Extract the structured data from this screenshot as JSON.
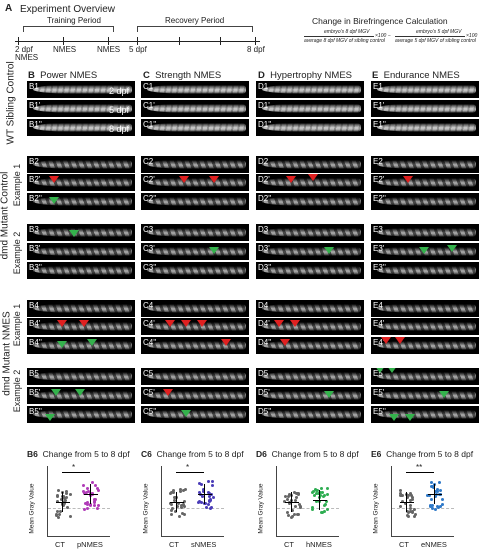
{
  "overview": {
    "panel_letter": "A",
    "title": "Experiment Overview",
    "training_label": "Training Period",
    "recovery_label": "Recovery Period",
    "tick_2dpf": "2 dpf",
    "tick_nmes_a": "NMES",
    "tick_nmes_b": "NMES",
    "tick_nmes_c": "NMES",
    "tick_5dpf": "5 dpf",
    "tick_8dpf": "8 dpf",
    "formula_title": "Change in Birefringence Calculation",
    "formula_num1": "embryo's 8 dpf MGV",
    "formula_den1": "average 8 dpf MGV of sibling control",
    "formula_num2": "embryo's 5 dpf MGV",
    "formula_den2": "average 5 dpf MGV of sibling control",
    "formula_x100": "×100"
  },
  "columns": [
    {
      "letter": "B",
      "title": "Power NMES"
    },
    {
      "letter": "C",
      "title": "Strength NMES"
    },
    {
      "letter": "D",
      "title": "Hypertrophy NMES"
    },
    {
      "letter": "E",
      "title": "Endurance NMES"
    }
  ],
  "row_labels": {
    "sibling": "WT Sibling Control",
    "mutant_control": "dmd Mutant Control",
    "mutant_nmes": "dmd Mutant NMES",
    "example1": "Example 1",
    "example2": "Example 2",
    "dmd": "dmd"
  },
  "day_labels": [
    "2 dpf",
    "5 dpf",
    "8 dpf"
  ],
  "image_labels": {
    "B": [
      "B1",
      "B1'",
      "B1''",
      "B2",
      "B2'",
      "B2''",
      "B3",
      "B3'",
      "B3''",
      "B4",
      "B4'",
      "B4''",
      "B5",
      "B5'",
      "B5''"
    ],
    "C": [
      "C1",
      "C1'",
      "C1''",
      "C2",
      "C2'",
      "C2''",
      "C3",
      "C3'",
      "C3''",
      "C4",
      "C4'",
      "C4''",
      "C5",
      "C5'",
      "C5''"
    ],
    "D": [
      "D1",
      "D1'",
      "D1''",
      "D2",
      "D2'",
      "D2''",
      "D3",
      "D3'",
      "D3''",
      "D4",
      "D4'",
      "D4''",
      "D5",
      "D5'",
      "D5''"
    ],
    "E": [
      "E1",
      "E1'",
      "E1''",
      "E2",
      "E2'",
      "E2''",
      "E3",
      "E3'",
      "E3''",
      "E4",
      "E4'",
      "E4''",
      "E5",
      "E5'",
      "E5''"
    ]
  },
  "stats_panels": [
    {
      "letter": "B6",
      "title": "Change from 5 to 8 dpf",
      "ylabel": "Mean Gray Value",
      "x_labels": [
        "CT",
        "pNMES"
      ],
      "sig": "*",
      "color": "#b03cb8"
    },
    {
      "letter": "C6",
      "title": "Change from 5 to 8 dpf",
      "ylabel": "Mean Gray Value",
      "x_labels": [
        "CT",
        "sNMES"
      ],
      "sig": "*",
      "color": "#4a3cb8"
    },
    {
      "letter": "D6",
      "title": "Change from 5 to 8 dpf",
      "ylabel": "Mean Gray Value",
      "x_labels": [
        "CT",
        "hNMES"
      ],
      "sig": "",
      "color": "#2fae52"
    },
    {
      "letter": "E6",
      "title": "Change from 5 to 8 dpf",
      "ylabel": "Mean Gray Value",
      "x_labels": [
        "CT",
        "eNMES"
      ],
      "sig": "**",
      "color": "#2f79c8"
    }
  ],
  "colors": {
    "red_arrow": "#e02020",
    "green_arrow": "#34b24c",
    "control_dots": "#555555"
  }
}
